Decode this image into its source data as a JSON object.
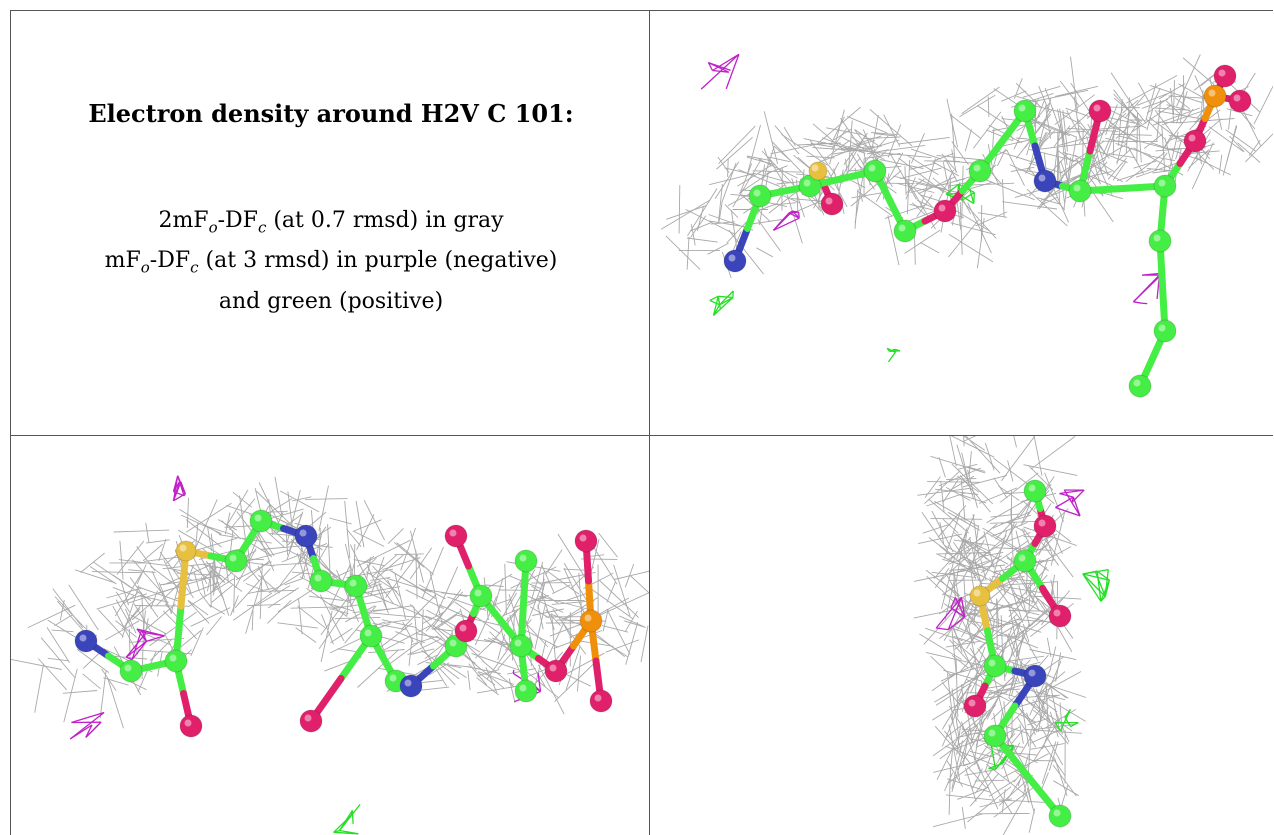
{
  "caption": {
    "title": "Electron density around H2V C 101:",
    "line1_pre": "2mF",
    "line1_sub1": "o",
    "line1_mid": "-DF",
    "line1_sub2": "c",
    "line1_post": " (at 0.7 rmsd) in gray",
    "line2_pre": "mF",
    "line2_sub1": "o",
    "line2_mid": "-DF",
    "line2_sub2": "c",
    "line2_post": " (at 3 rmsd) in purple (negative)",
    "line3": "and green (positive)"
  },
  "colors": {
    "mesh_gray": "#9a9a9a",
    "negative_purple": "#c020c8",
    "positive_green": "#22e022",
    "carbon": "#44ee44",
    "nitrogen": "#3a44bb",
    "oxygen": "#e0206a",
    "sulfur": "#e8c040",
    "phosphorus": "#f0900a"
  },
  "panels": [
    {
      "name": "view-top-right",
      "icon": "molecule-mesh-side-view"
    },
    {
      "name": "view-bottom-left",
      "icon": "molecule-mesh-front-view"
    },
    {
      "name": "view-bottom-right",
      "icon": "molecule-mesh-end-view"
    }
  ]
}
